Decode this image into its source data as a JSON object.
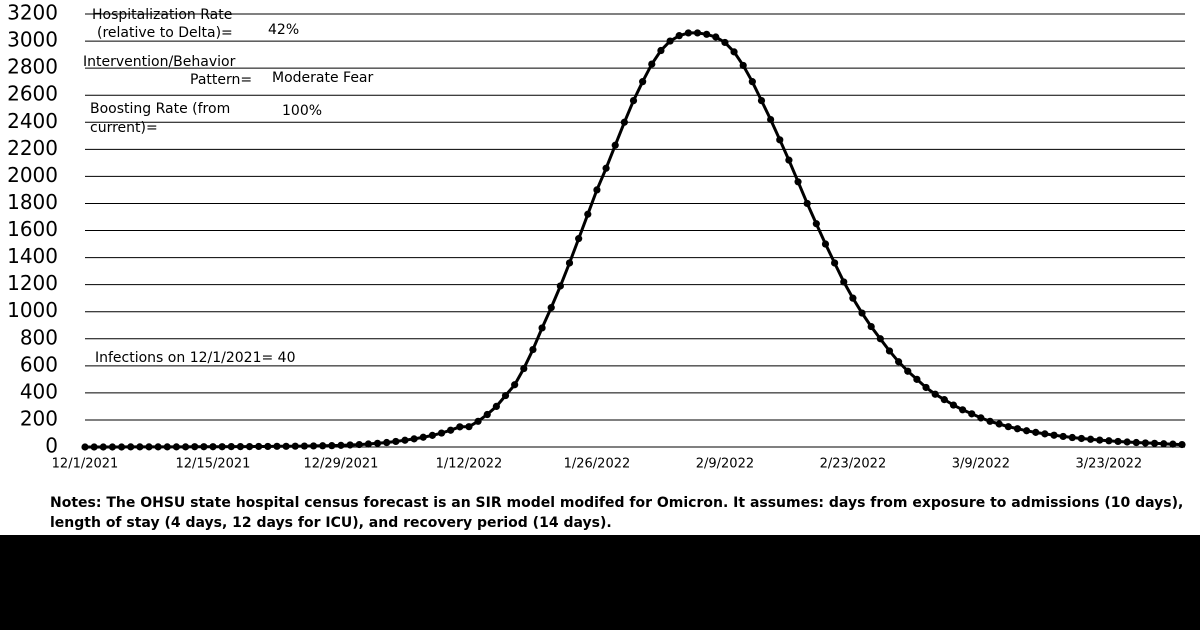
{
  "chart_data": {
    "type": "line",
    "categories": [
      "12/1/2021",
      null,
      null,
      null,
      null,
      null,
      null,
      null,
      null,
      null,
      null,
      null,
      null,
      null,
      "12/15/2021",
      null,
      null,
      null,
      null,
      null,
      null,
      null,
      null,
      null,
      null,
      null,
      null,
      null,
      "12/29/2021",
      null,
      null,
      null,
      null,
      null,
      null,
      null,
      null,
      null,
      null,
      null,
      null,
      null,
      "1/12/2022",
      null,
      null,
      null,
      null,
      null,
      null,
      null,
      null,
      null,
      null,
      null,
      null,
      null,
      "1/26/2022",
      null,
      null,
      null,
      null,
      null,
      null,
      null,
      null,
      null,
      null,
      null,
      null,
      null,
      "2/9/2022",
      null,
      null,
      null,
      null,
      null,
      null,
      null,
      null,
      null,
      null,
      null,
      null,
      null,
      "2/23/2022",
      null,
      null,
      null,
      null,
      null,
      null,
      null,
      null,
      null,
      null,
      null,
      null,
      null,
      "3/9/2022",
      null,
      null,
      null,
      null,
      null,
      null,
      null,
      null,
      null,
      null,
      null,
      null,
      null,
      "3/23/2022",
      null,
      null,
      null,
      null,
      null,
      null,
      null,
      null
    ],
    "values": [
      0,
      0,
      0,
      0,
      0,
      1,
      1,
      1,
      1,
      1,
      1,
      1,
      2,
      2,
      2,
      2,
      3,
      3,
      3,
      4,
      4,
      5,
      5,
      6,
      7,
      8,
      9,
      10,
      12,
      15,
      18,
      22,
      27,
      33,
      41,
      50,
      60,
      72,
      86,
      103,
      124,
      149,
      150,
      190,
      240,
      300,
      380,
      460,
      580,
      720,
      880,
      1030,
      1190,
      1360,
      1540,
      1720,
      1900,
      2060,
      2230,
      2400,
      2560,
      2700,
      2830,
      2930,
      3000,
      3040,
      3060,
      3060,
      3050,
      3030,
      2990,
      2920,
      2820,
      2700,
      2560,
      2420,
      2270,
      2120,
      1960,
      1800,
      1650,
      1500,
      1360,
      1220,
      1100,
      990,
      890,
      800,
      710,
      630,
      560,
      500,
      440,
      390,
      350,
      310,
      275,
      245,
      215,
      190,
      170,
      150,
      135,
      120,
      108,
      97,
      87,
      78,
      70,
      63,
      57,
      51,
      46,
      41,
      37,
      33,
      30,
      27,
      24,
      21,
      18
    ],
    "color": "#000000",
    "ylim": [
      0,
      3200
    ],
    "yticks": [
      0,
      200,
      400,
      600,
      800,
      1000,
      1200,
      1400,
      1600,
      1800,
      2000,
      2200,
      2400,
      2600,
      2800,
      3000,
      3200
    ],
    "grid": true,
    "annotations": [
      "Hospitalization Rate",
      "(relative to Delta)=",
      "42%",
      "Intervention/Behavior",
      "Pattern=",
      "Moderate Fear",
      "Boosting Rate (from",
      "current)=",
      "100%",
      "Infections on 12/1/2021= 40"
    ],
    "notes": [
      "Notes: The OHSU state hospital census forecast is an SIR model modifed for Omicron. It assumes: days from exposure to admissions (10 days),",
      "length of stay (4 days, 12 days for ICU), and recovery period (14 days)."
    ]
  }
}
